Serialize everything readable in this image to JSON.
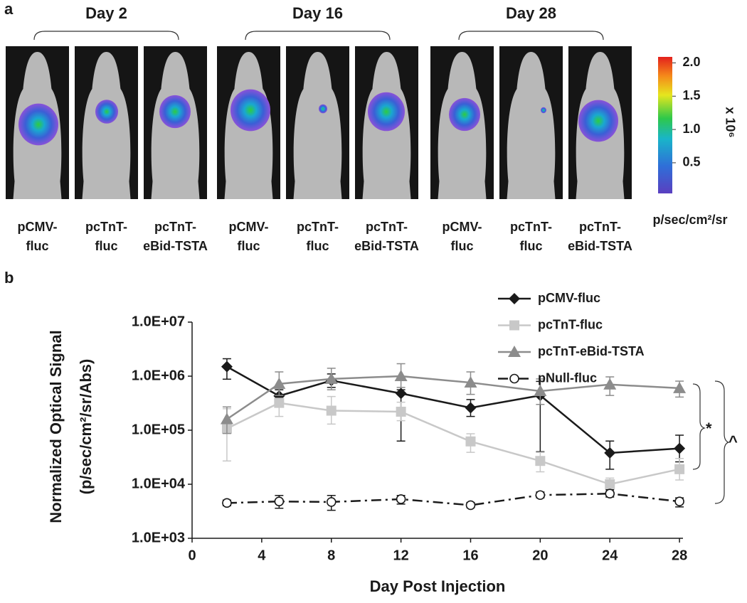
{
  "panel_a": {
    "label": "a",
    "groups": [
      {
        "title": "Day 2",
        "samples": [
          [
            "pCMV-",
            "fluc"
          ],
          [
            "pcTnT-",
            "fluc"
          ],
          [
            "pcTnT-",
            "eBid-TSTA"
          ]
        ]
      },
      {
        "title": "Day 16",
        "samples": [
          [
            "pCMV-",
            "fluc"
          ],
          [
            "pcTnT-",
            "fluc"
          ],
          [
            "pcTnT-",
            "eBid-TSTA"
          ]
        ]
      },
      {
        "title": "Day 28",
        "samples": [
          [
            "pCMV-",
            "fluc"
          ],
          [
            "pcTnT-",
            "fluc"
          ],
          [
            "pcTnT-",
            "eBid-TSTA"
          ]
        ]
      }
    ],
    "colorbar": {
      "clim": [
        0.04,
        2.09
      ],
      "ticks": [
        {
          "value": 2,
          "label": "2.0"
        },
        {
          "value": 1.5,
          "label": "1.5"
        },
        {
          "value": 1,
          "label": "1.0"
        },
        {
          "value": 0.5,
          "label": "0.5"
        }
      ],
      "multiplier": "x 10⁶",
      "unit": "p/sec/cm²/sr"
    }
  },
  "chart_data": {
    "type": "line",
    "panel_label": "b",
    "y_label": [
      "Normalized Optical Signal",
      "(p/sec/cm²/sr/Abs)"
    ],
    "x_label": "Day Post Injection",
    "log_y": true,
    "legend": "top-right",
    "x": [
      2,
      5,
      8,
      12,
      16,
      20,
      24,
      28
    ],
    "xlim": [
      0,
      28.2
    ],
    "xticks": [
      0,
      4,
      8,
      12,
      16,
      20,
      24,
      28
    ],
    "ylim": [
      1000,
      10000000
    ],
    "yticks": [
      {
        "value": 1000,
        "label": "1.0E+03"
      },
      {
        "value": 10000,
        "label": "1.0E+04"
      },
      {
        "value": 100000,
        "label": "1.0E+05"
      },
      {
        "value": 1000000,
        "label": "1.0E+06"
      },
      {
        "value": 10000000,
        "label": "1.0E+07"
      }
    ],
    "series": [
      {
        "name": "pCMV-fluc",
        "color": "#1a1a1a",
        "marker": "diamond",
        "line_style": "solid",
        "values": [
          1500000,
          430000,
          830000,
          480000,
          260000,
          440000,
          38000,
          46000
        ],
        "lower": [
          880000,
          300000,
          620000,
          63000,
          180000,
          40000,
          19000,
          26000
        ],
        "upper": [
          2100000,
          560000,
          1100000,
          560000,
          370000,
          800000,
          63000,
          81000
        ]
      },
      {
        "name": "pcTnT-fluc",
        "color": "#c8c8c8",
        "marker": "square",
        "line_style": "solid",
        "values": [
          107000,
          320000,
          230000,
          220000,
          62000,
          27000,
          10000,
          19000
        ],
        "lower": [
          27000,
          180000,
          130000,
          150000,
          39000,
          17000,
          8100,
          12000
        ],
        "upper": [
          250000,
          390000,
          420000,
          330000,
          86000,
          39000,
          13000,
          30000
        ]
      },
      {
        "name": "pcTnT-eBid-TSTA",
        "color": "#8c8c8c",
        "marker": "triangle",
        "line_style": "solid",
        "values": [
          160000,
          720000,
          890000,
          1000000,
          760000,
          530000,
          700000,
          600000
        ],
        "lower": [
          87000,
          440000,
          560000,
          620000,
          460000,
          300000,
          440000,
          410000
        ],
        "upper": [
          270000,
          1200000,
          1400000,
          1700000,
          1200000,
          890000,
          970000,
          810000
        ]
      },
      {
        "name": "pNull-fluc",
        "color": "#1a1a1a",
        "marker": "circle",
        "line_style": "dashdot",
        "values": [
          4500,
          4800,
          4700,
          5300,
          4100,
          6300,
          6700,
          4800
        ],
        "lower": [
          4000,
          3600,
          3300,
          4300,
          3700,
          5600,
          5800,
          3800
        ],
        "upper": [
          5100,
          6200,
          6200,
          6200,
          4600,
          7200,
          7900,
          5600
        ]
      }
    ],
    "annotations": [
      "*",
      "^"
    ]
  }
}
